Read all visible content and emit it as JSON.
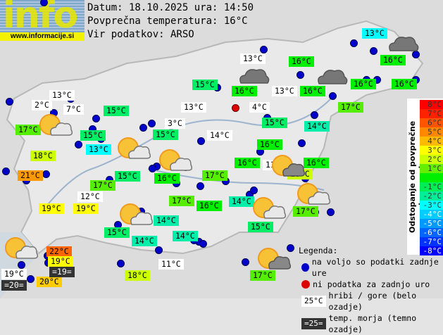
{
  "logo": {
    "text": "info",
    "url": "www.informacije.si"
  },
  "header": {
    "date_line": "Datum: 18.10.2025 ura: 14:50",
    "avg_temp_line": "Povprečna temperatura: 16°C",
    "source_line": "Vir podatkov: ARSO"
  },
  "colors": {
    "station_ok": "#0000cc",
    "station_missing": "#dd0000",
    "mountain_bg": "#ffffff",
    "sea_bg": "#333333"
  },
  "stations": [
    {
      "text": "13°C",
      "bg": "#00ffff"
    },
    {
      "text": "13°C",
      "bg": "#ffffff"
    },
    {
      "text": "16°C",
      "bg": "#00ee00"
    },
    {
      "text": "16°C",
      "bg": "#00ee00"
    },
    {
      "text": "15°C",
      "bg": "#00ee66"
    },
    {
      "text": "16°C",
      "bg": "#00ee00"
    },
    {
      "text": "13°C",
      "bg": "#ffffff"
    },
    {
      "text": "16°C",
      "bg": "#00ee00"
    },
    {
      "text": "16°C",
      "bg": "#00ee00"
    },
    {
      "text": "16°C",
      "bg": "#00ee00"
    },
    {
      "text": "13°C",
      "bg": "#ffffff"
    },
    {
      "text": "2°C",
      "bg": "#ffffff"
    },
    {
      "text": "7°C",
      "bg": "#ffffff"
    },
    {
      "text": "15°C",
      "bg": "#00ee66"
    },
    {
      "text": "13°C",
      "bg": "#ffffff"
    },
    {
      "text": "4°C",
      "bg": "#ffffff"
    },
    {
      "text": "17°C",
      "bg": "#55ee00"
    },
    {
      "text": "17°C",
      "bg": "#55ee00"
    },
    {
      "text": "15°C",
      "bg": "#00ee66"
    },
    {
      "text": "3°C",
      "bg": "#ffffff"
    },
    {
      "text": "15°C",
      "bg": "#00ee66"
    },
    {
      "text": "14°C",
      "bg": "#00eeaa"
    },
    {
      "text": "15°C",
      "bg": "#00ee66"
    },
    {
      "text": "14°C",
      "bg": "#ffffff"
    },
    {
      "text": "13°C",
      "bg": "#00ffff"
    },
    {
      "text": "16°C",
      "bg": "#00ee00"
    },
    {
      "text": "18°C",
      "bg": "#ccff00"
    },
    {
      "text": "16°C",
      "bg": "#00ee00"
    },
    {
      "text": "11°C",
      "bg": "#ffffff"
    },
    {
      "text": "16°C",
      "bg": "#00ee00"
    },
    {
      "text": "16°C",
      "bg": "#00ee00"
    },
    {
      "text": "15°C",
      "bg": "#00ee66"
    },
    {
      "text": "17°C",
      "bg": "#55ee00"
    },
    {
      "text": "18°C",
      "bg": "#ccff00"
    },
    {
      "text": "21°C",
      "bg": "#ff9900"
    },
    {
      "text": "17°C",
      "bg": "#55ee00"
    },
    {
      "text": "12°C",
      "bg": "#ffffff"
    },
    {
      "text": "17°C",
      "bg": "#55ee00"
    },
    {
      "text": "16°C",
      "bg": "#00ee00"
    },
    {
      "text": "14°C",
      "bg": "#00eeaa"
    },
    {
      "text": "17°C",
      "bg": "#55ee00"
    },
    {
      "text": "19°C",
      "bg": "#ffff00"
    },
    {
      "text": "19°C",
      "bg": "#ffff00"
    },
    {
      "text": "15°C",
      "bg": "#00ee66"
    },
    {
      "text": "14°C",
      "bg": "#00eeaa"
    },
    {
      "text": "15°C",
      "bg": "#00ee66"
    },
    {
      "text": "14°C",
      "bg": "#00eeaa"
    },
    {
      "text": "14°C",
      "bg": "#00eeaa"
    },
    {
      "text": "11°C",
      "bg": "#ffffff"
    },
    {
      "text": "22°C",
      "bg": "#ff6600"
    },
    {
      "text": "19°C",
      "bg": "#ffff00"
    },
    {
      "text": "19°C",
      "bg": "#ffffff"
    },
    {
      "text": "20°C",
      "bg": "#ffcc00"
    },
    {
      "text": "18°C",
      "bg": "#ccff00"
    },
    {
      "text": "17°C",
      "bg": "#55ee00"
    }
  ],
  "sea_temps": [
    {
      "text": "=19="
    },
    {
      "text": "=20="
    }
  ],
  "weather_icons": [
    "partly-cloudy",
    "partly-cloudy",
    "partly-cloudy",
    "partly-cloudy",
    "partly-cloudy",
    "partly-cloudy",
    "partly-cloudy",
    "partly-cloudy",
    "overcast",
    "overcast",
    "overcast",
    "partly-cloudy-dark",
    "partly-cloudy-dark",
    "partly-cloudy-dark"
  ],
  "scale": {
    "title": "Odstopanje od povprečne temperature:",
    "rows": [
      {
        "label": "8°C",
        "color": "#ff0000"
      },
      {
        "label": "7°C",
        "color": "#ff2200"
      },
      {
        "label": "6°C",
        "color": "#ff5500"
      },
      {
        "label": "5°C",
        "color": "#ff8800"
      },
      {
        "label": "4°C",
        "color": "#ffbb00"
      },
      {
        "label": "3°C",
        "color": "#ffff00"
      },
      {
        "label": "2°C",
        "color": "#ccff00"
      },
      {
        "label": "1°C",
        "color": "#66ee00"
      },
      {
        "label": "",
        "color": "#00ee00"
      },
      {
        "label": "-1°C",
        "color": "#00ee55"
      },
      {
        "label": "-2°C",
        "color": "#00ee99"
      },
      {
        "label": "-3°C",
        "color": "#00ffff"
      },
      {
        "label": "-4°C",
        "color": "#00ccff"
      },
      {
        "label": "-5°C",
        "color": "#0099ff"
      },
      {
        "label": "-6°C",
        "color": "#0066ff"
      },
      {
        "label": "-7°C",
        "color": "#0033ff"
      },
      {
        "label": "-8°C",
        "color": "#0000ff"
      }
    ]
  },
  "legend": {
    "title": "Legenda:",
    "ok": "na voljo so podatki zadnje ure",
    "missing": "ni podatka za zadnjo uro",
    "mountain_sample": "25°C",
    "mountain_text": "hribi / gore (belo ozadje)",
    "sea_sample": "=25=",
    "sea_text": "temp. morja (temno ozadje)"
  }
}
